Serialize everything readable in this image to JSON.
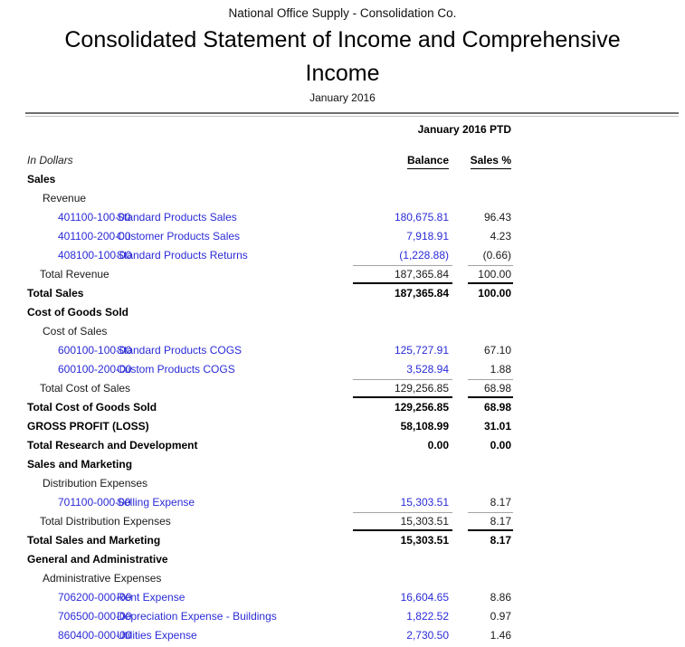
{
  "header": {
    "company": "National Office Supply - Consolidation Co.",
    "title": "Consolidated Statement of Income and Comprehensive Income",
    "subtitle": "January 2016",
    "period_header": "January 2016 PTD",
    "in_dollars": "In Dollars",
    "columns": {
      "balance": "Balance",
      "sales_pct": "Sales %"
    }
  },
  "colors": {
    "link_blue": "#2b2bd7",
    "rule_dark": "#6f6f6f",
    "rule_light": "#c2c2c2",
    "subtotal_top_line": "#a3a3a3",
    "subtotal_bottom_line": "#000000"
  },
  "rows": [
    {
      "type": "section",
      "label": "Sales"
    },
    {
      "type": "subsection",
      "label": "Revenue"
    },
    {
      "type": "account",
      "account": "401100-100-00",
      "description": "Standard Products Sales",
      "balance": "180,675.81",
      "pct": "96.43"
    },
    {
      "type": "account",
      "account": "401100-200-00",
      "description": "Customer Products Sales",
      "balance": "7,918.91",
      "pct": "4.23"
    },
    {
      "type": "account",
      "account": "408100-100-00",
      "description": "Standard Products Returns",
      "balance": "(1,228.88)",
      "pct": "(0.66)"
    },
    {
      "type": "subtotal",
      "label": "Total Revenue",
      "balance": "187,365.84",
      "pct": "100.00"
    },
    {
      "type": "total",
      "label": "Total Sales",
      "balance": "187,365.84",
      "pct": "100.00"
    },
    {
      "type": "section",
      "label": "Cost of Goods Sold"
    },
    {
      "type": "subsection",
      "label": "Cost of Sales"
    },
    {
      "type": "account",
      "account": "600100-100-00",
      "description": "Standard Products COGS",
      "balance": "125,727.91",
      "pct": "67.10"
    },
    {
      "type": "account",
      "account": "600100-200-00",
      "description": "Custom Products COGS",
      "balance": "3,528.94",
      "pct": "1.88"
    },
    {
      "type": "subtotal",
      "label": "Total Cost of Sales",
      "balance": "129,256.85",
      "pct": "68.98"
    },
    {
      "type": "total",
      "label": "Total Cost of Goods Sold",
      "balance": "129,256.85",
      "pct": "68.98"
    },
    {
      "type": "total",
      "label": "GROSS PROFIT (LOSS)",
      "balance": "58,108.99",
      "pct": "31.01"
    },
    {
      "type": "total",
      "label": "Total Research and Development",
      "balance": "0.00",
      "pct": "0.00"
    },
    {
      "type": "section",
      "label": "Sales and Marketing"
    },
    {
      "type": "subsection",
      "label": "Distribution Expenses"
    },
    {
      "type": "account",
      "account": "701100-000-00",
      "description": "Selling Expense",
      "balance": "15,303.51",
      "pct": "8.17"
    },
    {
      "type": "subtotal",
      "label": "Total Distribution Expenses",
      "balance": "15,303.51",
      "pct": "8.17"
    },
    {
      "type": "total",
      "label": "Total Sales and Marketing",
      "balance": "15,303.51",
      "pct": "8.17"
    },
    {
      "type": "section",
      "label": "General and Administrative"
    },
    {
      "type": "subsection",
      "label": "Administrative Expenses"
    },
    {
      "type": "account",
      "account": "706200-000-00",
      "description": "Rent Expense",
      "balance": "16,604.65",
      "pct": "8.86"
    },
    {
      "type": "account",
      "account": "706500-000-00",
      "description": "Depreciation Expense - Buildings",
      "balance": "1,822.52",
      "pct": "0.97"
    },
    {
      "type": "account",
      "account": "860400-000-00",
      "description": "Utilities Expense",
      "balance": "2,730.50",
      "pct": "1.46"
    }
  ]
}
